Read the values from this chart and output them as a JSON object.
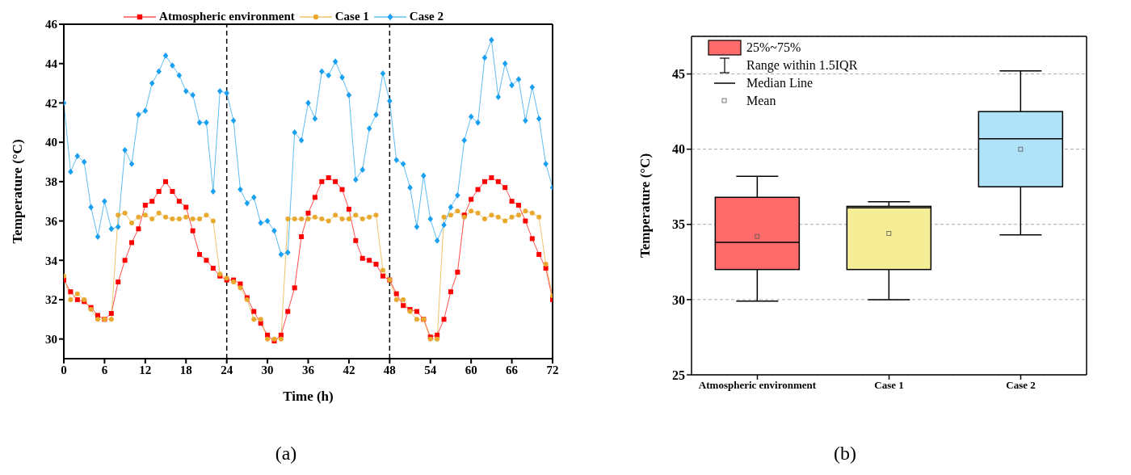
{
  "chart_data": [
    {
      "type": "line",
      "title": "(a)",
      "xlabel": "Time (h)",
      "ylabel": "Temperature (°C)",
      "x": [
        0,
        1,
        2,
        3,
        4,
        5,
        6,
        7,
        8,
        9,
        10,
        11,
        12,
        13,
        14,
        15,
        16,
        17,
        18,
        19,
        20,
        21,
        22,
        23,
        24,
        25,
        26,
        27,
        28,
        29,
        30,
        31,
        32,
        33,
        34,
        35,
        36,
        37,
        38,
        39,
        40,
        41,
        42,
        43,
        44,
        45,
        46,
        47,
        48,
        49,
        50,
        51,
        52,
        53,
        54,
        55,
        56,
        57,
        58,
        59,
        60,
        61,
        62,
        63,
        64,
        65,
        66,
        67,
        68,
        69,
        70,
        71,
        72
      ],
      "series": [
        {
          "name": "Atmospheric environment",
          "color": "#ff0000",
          "marker": "square",
          "values": [
            33.0,
            32.4,
            32.0,
            31.9,
            31.6,
            31.2,
            31.0,
            31.3,
            32.9,
            34.0,
            34.9,
            35.6,
            36.8,
            37.0,
            37.5,
            38.0,
            37.5,
            37.0,
            36.7,
            35.5,
            34.3,
            34.0,
            33.6,
            33.2,
            33.0,
            33.0,
            32.8,
            32.1,
            31.4,
            30.8,
            30.2,
            29.9,
            30.2,
            31.4,
            32.6,
            35.2,
            36.4,
            37.2,
            38.0,
            38.2,
            38.0,
            37.6,
            36.6,
            35.0,
            34.1,
            34.0,
            33.8,
            33.2,
            33.0,
            32.3,
            31.7,
            31.5,
            31.4,
            31.0,
            30.1,
            30.2,
            31.0,
            32.4,
            33.4,
            36.3,
            37.1,
            37.6,
            38.0,
            38.2,
            38.0,
            37.7,
            37.0,
            36.8,
            36.0,
            35.1,
            34.3,
            33.6,
            32.0
          ]
        },
        {
          "name": "Case 1",
          "color": "#e8a92e",
          "marker": "circle",
          "values": [
            33.2,
            32.0,
            32.3,
            32.0,
            31.5,
            31.0,
            31.0,
            31.0,
            36.3,
            36.4,
            35.9,
            36.2,
            36.3,
            36.1,
            36.4,
            36.2,
            36.1,
            36.1,
            36.2,
            36.1,
            36.1,
            36.3,
            36.0,
            33.3,
            33.1,
            32.9,
            32.6,
            32.0,
            31.0,
            31.0,
            30.0,
            30.0,
            30.0,
            36.1,
            36.1,
            36.1,
            36.1,
            36.2,
            36.1,
            36.0,
            36.3,
            36.1,
            36.1,
            36.3,
            36.1,
            36.2,
            36.3,
            33.5,
            33.0,
            32.0,
            32.0,
            31.4,
            31.0,
            31.0,
            30.0,
            30.0,
            36.2,
            36.3,
            36.5,
            36.2,
            36.5,
            36.4,
            36.1,
            36.3,
            36.2,
            36.0,
            36.2,
            36.3,
            36.5,
            36.4,
            36.2,
            33.8,
            32.2
          ]
        },
        {
          "name": "Case 2",
          "color": "#1aa0f0",
          "marker": "diamond",
          "values": [
            42.0,
            38.5,
            39.3,
            39.0,
            36.7,
            35.2,
            37.0,
            35.6,
            35.7,
            39.6,
            38.9,
            41.4,
            41.6,
            43.0,
            43.6,
            44.4,
            43.9,
            43.4,
            42.6,
            42.4,
            41.0,
            41.0,
            37.5,
            42.6,
            42.5,
            41.1,
            37.6,
            36.9,
            37.2,
            35.9,
            36.0,
            35.5,
            34.3,
            34.4,
            40.5,
            40.1,
            42.0,
            41.2,
            43.6,
            43.4,
            44.1,
            43.3,
            42.4,
            38.1,
            38.6,
            40.7,
            41.4,
            43.5,
            42.1,
            39.1,
            38.9,
            37.7,
            35.7,
            38.3,
            36.1,
            35.0,
            35.8,
            36.7,
            37.3,
            40.1,
            41.3,
            41.0,
            44.3,
            45.2,
            42.3,
            44.0,
            42.9,
            43.2,
            41.1,
            42.8,
            41.2,
            38.9,
            37.7
          ]
        }
      ],
      "xlim": [
        0,
        72
      ],
      "xticks": [
        0,
        6,
        12,
        18,
        24,
        30,
        36,
        42,
        48,
        54,
        60,
        66,
        72
      ],
      "ylim": [
        29,
        46
      ],
      "yticks": [
        30,
        32,
        34,
        36,
        38,
        40,
        42,
        44,
        46
      ],
      "ref_lines": [
        {
          "axis": "x",
          "value": 24,
          "color": "#000000",
          "line_style": "dashed"
        },
        {
          "axis": "x",
          "value": 48,
          "color": "#000000",
          "line_style": "dashed"
        }
      ],
      "legend": "top",
      "grid": false
    },
    {
      "type": "box",
      "title": "(b)",
      "ylabel": "Temperature (°C)",
      "categories": [
        "Atmospheric environment",
        "Case 1",
        "Case 2"
      ],
      "colors": [
        "#ff6b6b",
        "#f5ee96",
        "#b0e2f8"
      ],
      "boxes": [
        {
          "low": 29.9,
          "q1": 32.0,
          "median": 33.8,
          "q3": 36.8,
          "high": 38.2,
          "mean": 34.2
        },
        {
          "low": 30.0,
          "q1": 32.0,
          "median": 36.1,
          "q3": 36.2,
          "high": 36.5,
          "mean": 34.4
        },
        {
          "low": 34.3,
          "q1": 37.5,
          "median": 40.7,
          "q3": 42.5,
          "high": 45.2,
          "mean": 40.0
        }
      ],
      "annotations": [
        "25%~75%",
        "Range within 1.5IQR",
        "Median Line",
        "Mean"
      ],
      "ylim": [
        25,
        47.5
      ],
      "yticks": [
        25,
        30,
        35,
        40,
        45
      ],
      "grid": "y"
    }
  ]
}
